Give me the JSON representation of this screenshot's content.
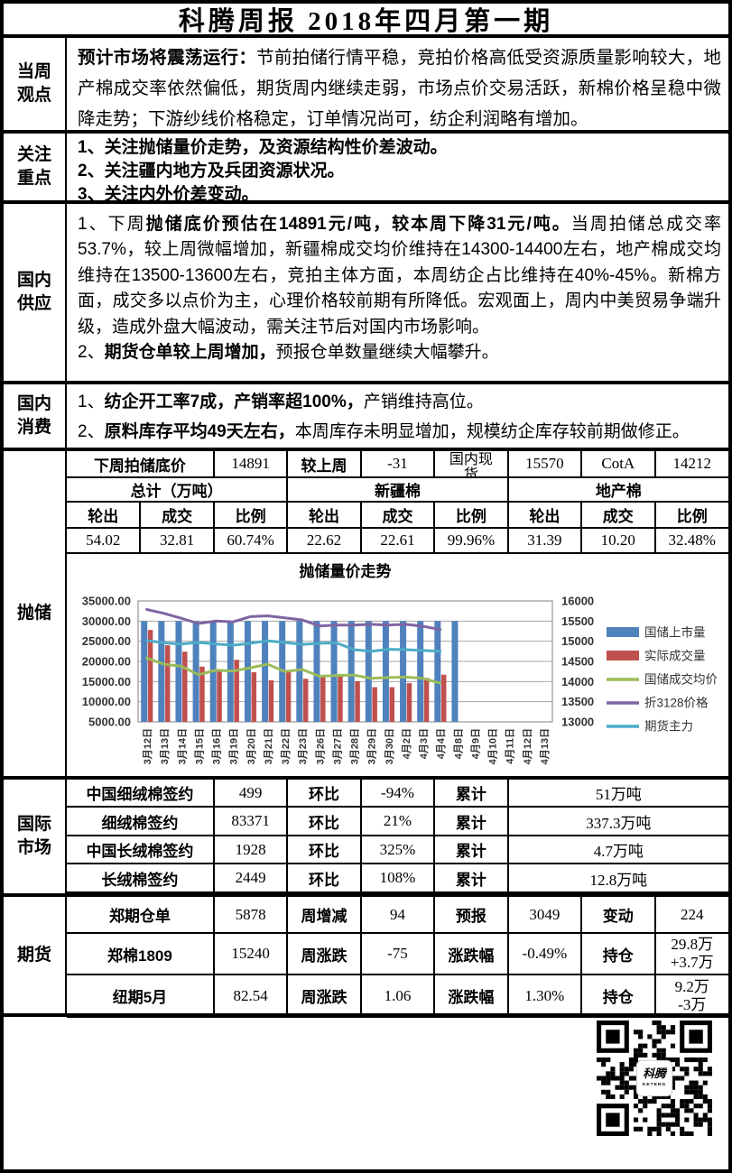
{
  "title": "科腾周报  2018年四月第一期",
  "sections": {
    "viewpoint": {
      "label": "当周观点",
      "segments": [
        {
          "b": true,
          "t": "预计市场将震荡运行："
        },
        {
          "b": false,
          "t": "节前拍储行情平稳，竞拍价格高低受资源质量影响较大，地产棉成交率依然偏低，期货周内继续走弱，市场点价交易活跃，新棉价格呈稳中微降走势；下游纱线价格稳定，订单情况尚可，纺企利润略有增加。"
        }
      ]
    },
    "focus": {
      "label": "关注重点",
      "items": [
        "1、关注抛储量价走势，及资源结构性价差波动。",
        "2、关注疆内地方及兵团资源状况。",
        "3、关注内外价差变动。"
      ]
    },
    "supply": {
      "label": "国内供应",
      "item1": [
        {
          "b": false,
          "t": "1、下周"
        },
        {
          "b": true,
          "t": "抛储底价预估在14891元/吨，较本周下降31元/吨。"
        },
        {
          "b": false,
          "t": "当周拍储总成交率53.7%，较上周微幅增加，新疆棉成交均价维持在14300-14400左右，地产棉成交均维持在13500-13600左右，竞拍主体方面，本周纺企占比维持在40%-45%。新棉方面，成交多以点价为主，心理价格较前期有所降低。宏观面上，周内中美贸易争端升级，造成外盘大幅波动，需关注节后对国内市场影响。"
        }
      ],
      "item2": [
        {
          "b": false,
          "t": "2、"
        },
        {
          "b": true,
          "t": "期货仓单较上周增加，"
        },
        {
          "b": false,
          "t": "预报仓单数量继续大幅攀升。"
        }
      ]
    },
    "consume": {
      "label": "国内消费",
      "item1": [
        {
          "b": false,
          "t": "1、"
        },
        {
          "b": true,
          "t": "纺企开工率7成，产销率超100%，"
        },
        {
          "b": false,
          "t": "产销维持高位。"
        }
      ],
      "item2": [
        {
          "b": false,
          "t": "2、"
        },
        {
          "b": true,
          "t": "原料库存平均49天左右，"
        },
        {
          "b": false,
          "t": "本周库存未明显增加，规模纺企库存较前期做修正。"
        }
      ]
    },
    "paochu": {
      "label": "抛储",
      "header": {
        "floor_label": "下周拍储底价",
        "floor": "14891",
        "wow_label": "较上周",
        "wow": "-31",
        "spot_label": "国内现货",
        "spot": "15570",
        "cota_label": "CotA",
        "cota": "14212"
      },
      "groups": [
        "总计（万吨）",
        "新疆棉",
        "地产棉"
      ],
      "col_headers": [
        "轮出",
        "成交",
        "比例"
      ],
      "values": [
        "54.02",
        "32.81",
        "60.74%",
        "22.62",
        "22.61",
        "99.96%",
        "31.39",
        "10.20",
        "32.48%"
      ]
    },
    "intl": {
      "label": "国际市场",
      "rows": [
        [
          "中国细绒棉签约",
          "499",
          "环比",
          "-94%",
          "累计",
          "51万吨"
        ],
        [
          "细绒棉签约",
          "83371",
          "环比",
          "21%",
          "累计",
          "337.3万吨"
        ],
        [
          "中国长绒棉签约",
          "1928",
          "环比",
          "325%",
          "累计",
          "4.7万吨"
        ],
        [
          "长绒棉签约",
          "2449",
          "环比",
          "108%",
          "累计",
          "12.8万吨"
        ]
      ]
    },
    "futures": {
      "label": "期货",
      "rows": [
        [
          "郑期仓单",
          "5878",
          "周增减",
          "94",
          "预报",
          "3049",
          "变动",
          "224"
        ],
        [
          "郑棉1809",
          "15240",
          "周涨跌",
          "-75",
          "涨跌幅",
          "-0.49%",
          "持仓",
          "29.8万\n+3.7万"
        ],
        [
          "纽期5月",
          "82.54",
          "周涨跌",
          "1.06",
          "涨跌幅",
          "1.30%",
          "持仓",
          "9.2万\n-3万"
        ]
      ]
    },
    "qr": {
      "label_cn": "科腾",
      "label_en": "KETENG"
    }
  },
  "chart_data": {
    "type": "bar",
    "title": "抛储量价走势",
    "categories": [
      "3月12日",
      "3月13日",
      "3月14日",
      "3月15日",
      "3月16日",
      "3月19日",
      "3月20日",
      "3月21日",
      "3月22日",
      "3月23日",
      "3月26日",
      "3月27日",
      "3月28日",
      "3月29日",
      "3月30日",
      "4月2日",
      "4月3日",
      "4月4日",
      "4月8日",
      "4月9日",
      "4月10日",
      "4月11日",
      "4月12日",
      "4月13日"
    ],
    "series": [
      {
        "name": "国储上市量",
        "type": "bar",
        "axis": "left",
        "color": "#4F81BD",
        "values": [
          30000,
          30000,
          30000,
          30000,
          30000,
          30000,
          30000,
          30000,
          30000,
          30000,
          30000,
          30000,
          30000,
          30000,
          30000,
          30000,
          30000,
          30000,
          30000,
          null,
          null,
          null,
          null,
          null
        ]
      },
      {
        "name": "实际成交量",
        "type": "bar",
        "axis": "left",
        "color": "#C0504D",
        "values": [
          27800,
          24000,
          22400,
          18700,
          17900,
          20400,
          17300,
          15300,
          17500,
          15700,
          16400,
          16500,
          15100,
          13600,
          13600,
          14600,
          15900,
          16700,
          null,
          null,
          null,
          null,
          null,
          null
        ]
      },
      {
        "name": "国储成交均价",
        "type": "line",
        "axis": "right",
        "color": "#9BBB59",
        "values": [
          14580,
          14430,
          14380,
          14170,
          14280,
          14260,
          14340,
          14430,
          14250,
          14300,
          14130,
          14150,
          14160,
          14080,
          14100,
          14110,
          14080,
          13960,
          null,
          null,
          null,
          null,
          null,
          null
        ]
      },
      {
        "name": "折3128价格",
        "type": "line",
        "axis": "right",
        "color": "#8064A2",
        "values": [
          15790,
          15690,
          15570,
          15440,
          15500,
          15480,
          15610,
          15630,
          15580,
          15530,
          15380,
          15400,
          15400,
          15420,
          15400,
          15420,
          15370,
          15290,
          null,
          null,
          null,
          null,
          null,
          null
        ]
      },
      {
        "name": "期货主力",
        "type": "line",
        "axis": "right",
        "color": "#4BACC6",
        "values": [
          15020,
          14960,
          14930,
          14970,
          14930,
          14900,
          14950,
          15010,
          14970,
          14920,
          14950,
          14960,
          14790,
          14750,
          14800,
          14790,
          14770,
          14750,
          null,
          null,
          null,
          null,
          null,
          null
        ]
      }
    ],
    "left_axis": {
      "min": 5000,
      "max": 35000,
      "step": 5000,
      "decimals": 2
    },
    "right_axis": {
      "min": 13000,
      "max": 16000,
      "step": 500,
      "decimals": 0
    },
    "grid": true,
    "legend_position": "right"
  }
}
